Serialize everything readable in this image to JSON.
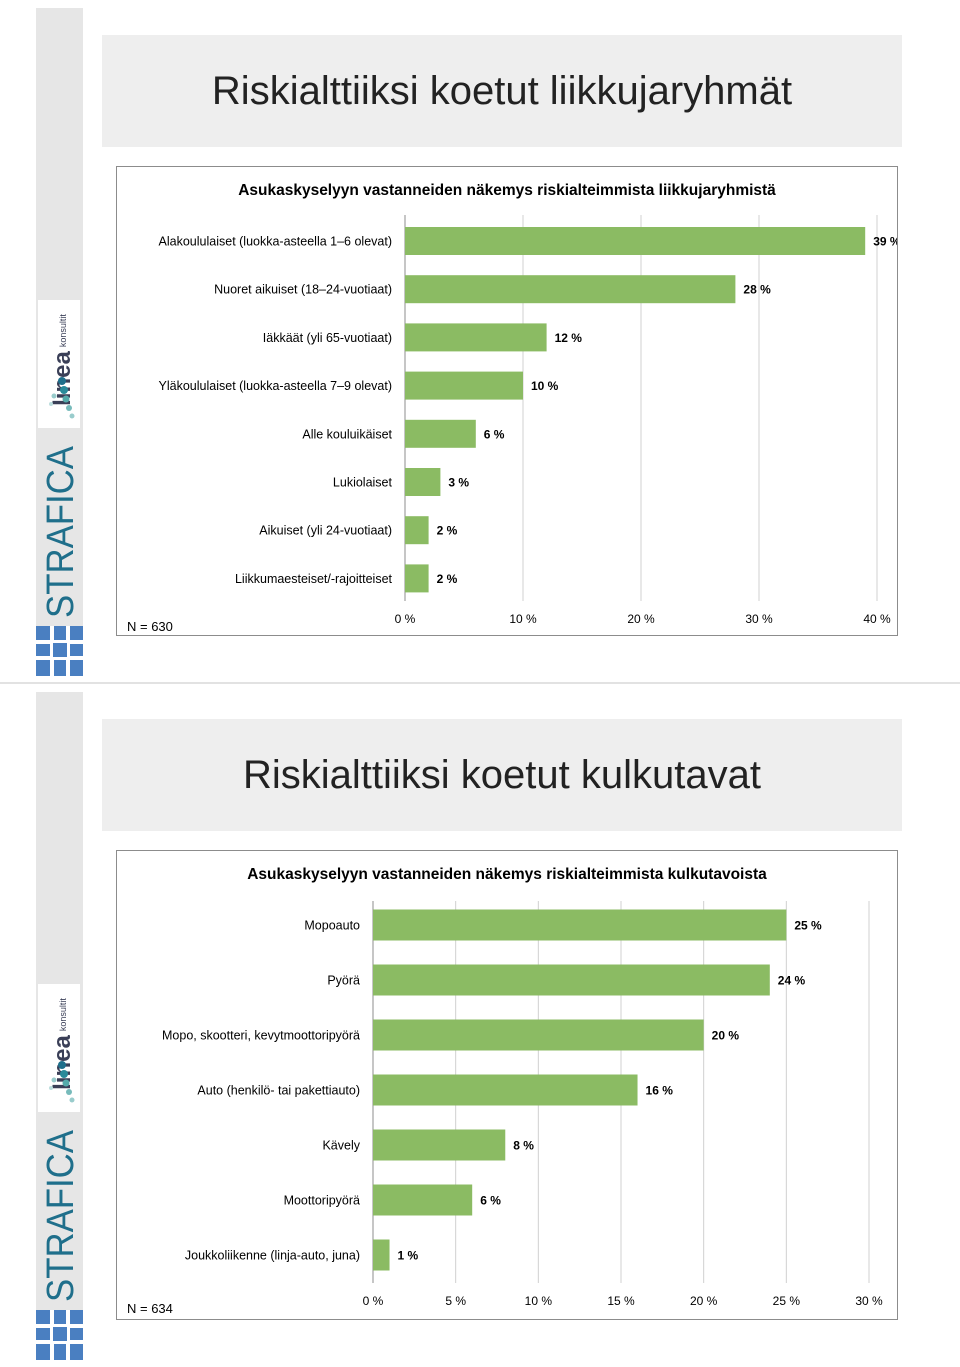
{
  "brand": {
    "logo_name": "linea",
    "logo_subtitle": "konsultit",
    "vertical_text": "STRAFICA",
    "accent_color": "#1f6f8b",
    "strip_color": "#e6e6e6",
    "mark_color": "#4a7fc1"
  },
  "slides": [
    {
      "title": "Riskialttiiksi koetut liikkujaryhmät",
      "chart_data": {
        "type": "bar",
        "orientation": "horizontal",
        "title": "Asukaskyselyyn vastanneiden näkemys riskialteimmista liikkujaryhmistä",
        "n_label": "N = 630",
        "categories": [
          "Alakoululaiset (luokka-asteella 1–6 olevat)",
          "Nuoret aikuiset (18–24-vuotiaat)",
          "Iäkkäät (yli 65-vuotiaat)",
          "Yläkoululaiset (luokka-asteella 7–9 olevat)",
          "Alle kouluikäiset",
          "Lukiolaiset",
          "Aikuiset (yli 24-vuotiaat)",
          "Liikkumaesteiset/-rajoitteiset"
        ],
        "values": [
          39,
          28,
          12,
          10,
          6,
          3,
          2,
          2
        ],
        "value_labels": [
          "39 %",
          "28 %",
          "12 %",
          "10 %",
          "6 %",
          "3 %",
          "2 %",
          "2 %"
        ],
        "xlim": [
          0,
          40
        ],
        "ticks": [
          "0 %",
          "10 %",
          "20 %",
          "30 %",
          "40 %"
        ],
        "grid": true,
        "bar_color": "#8bbb63"
      }
    },
    {
      "title": "Riskialttiiksi koetut kulkutavat",
      "chart_data": {
        "type": "bar",
        "orientation": "horizontal",
        "title": "Asukaskyselyyn vastanneiden näkemys riskialteimmista kulkutavoista",
        "n_label": "N = 634",
        "categories": [
          "Mopoauto",
          "Pyörä",
          "Mopo, skootteri, kevytmoottoripyörä",
          "Auto (henkilö- tai pakettiauto)",
          "Kävely",
          "Moottoripyörä",
          "Joukkoliikenne (linja-auto, juna)"
        ],
        "values": [
          25,
          24,
          20,
          16,
          8,
          6,
          1
        ],
        "value_labels": [
          "25 %",
          "24 %",
          "20 %",
          "16 %",
          "8 %",
          "6 %",
          "1 %"
        ],
        "xlim": [
          0,
          30
        ],
        "ticks": [
          "0 %",
          "5 %",
          "10 %",
          "15 %",
          "20 %",
          "25 %",
          "30 %"
        ],
        "grid": true,
        "bar_color": "#8bbb63"
      }
    }
  ]
}
